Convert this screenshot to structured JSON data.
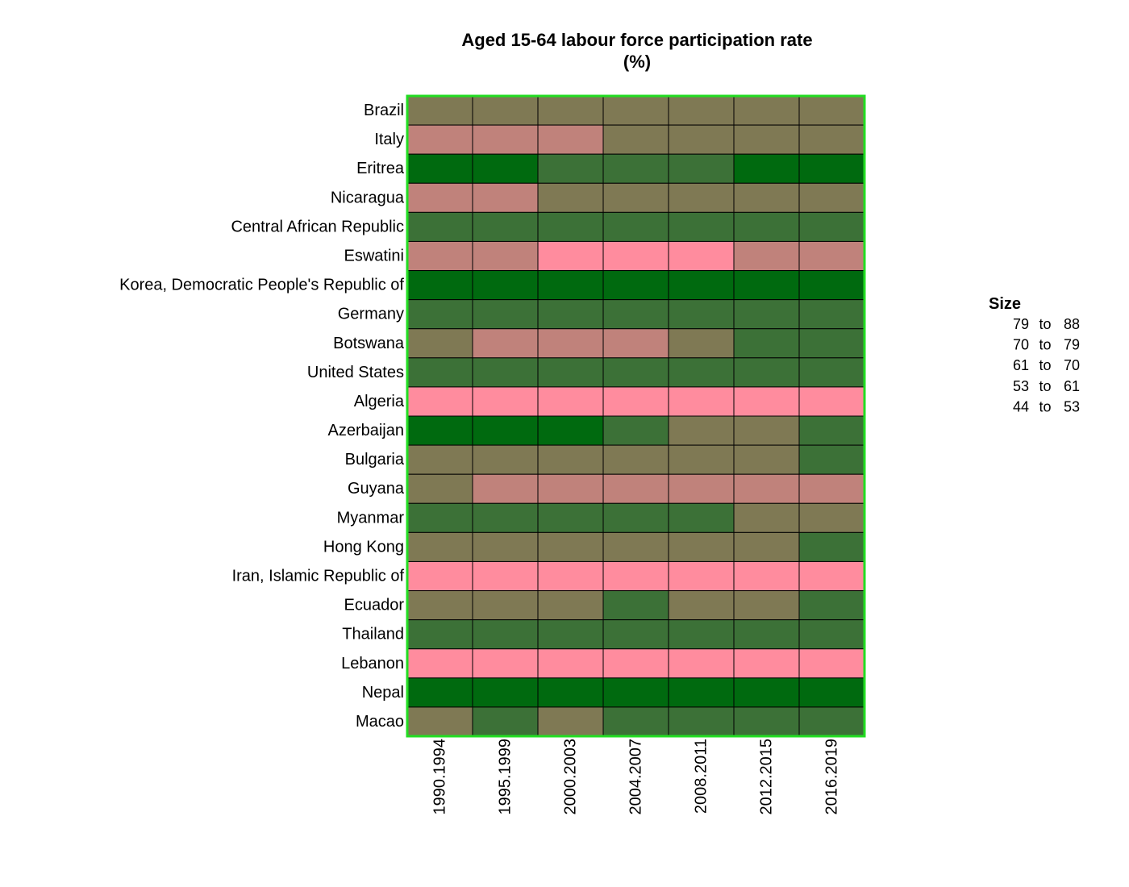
{
  "chart_data": {
    "type": "heatmap",
    "title": "Aged 15-64 labour force participation rate",
    "subtitle": "(%)",
    "columns": [
      "1990.1994",
      "1995.1999",
      "2000.2003",
      "2004.2007",
      "2008.2011",
      "2012.2015",
      "2016.2019"
    ],
    "rows": [
      "Brazil",
      "Italy",
      "Eritrea",
      "Nicaragua",
      "Central African Republic",
      "Eswatini",
      "Korea, Democratic People's Republic of",
      "Germany",
      "Botswana",
      "United States",
      "Algeria",
      "Azerbaijan",
      "Bulgaria",
      "Guyana",
      "Myanmar",
      "Hong Kong",
      "Iran, Islamic Republic of",
      "Ecuador",
      "Thailand",
      "Lebanon",
      "Nepal",
      "Macao"
    ],
    "bin_index": [
      [
        2,
        2,
        2,
        2,
        2,
        2,
        2
      ],
      [
        3,
        3,
        3,
        2,
        2,
        2,
        2
      ],
      [
        0,
        0,
        1,
        1,
        1,
        0,
        0
      ],
      [
        3,
        3,
        2,
        2,
        2,
        2,
        2
      ],
      [
        1,
        1,
        1,
        1,
        1,
        1,
        1
      ],
      [
        3,
        3,
        4,
        4,
        4,
        3,
        3
      ],
      [
        0,
        0,
        0,
        0,
        0,
        0,
        0
      ],
      [
        1,
        1,
        1,
        1,
        1,
        1,
        1
      ],
      [
        2,
        3,
        3,
        3,
        2,
        1,
        1
      ],
      [
        1,
        1,
        1,
        1,
        1,
        1,
        1
      ],
      [
        4,
        4,
        4,
        4,
        4,
        4,
        4
      ],
      [
        0,
        0,
        0,
        1,
        2,
        2,
        1
      ],
      [
        2,
        2,
        2,
        2,
        2,
        2,
        1
      ],
      [
        2,
        3,
        3,
        3,
        3,
        3,
        3
      ],
      [
        1,
        1,
        1,
        1,
        1,
        2,
        2
      ],
      [
        2,
        2,
        2,
        2,
        2,
        2,
        1
      ],
      [
        4,
        4,
        4,
        4,
        4,
        4,
        4
      ],
      [
        2,
        2,
        2,
        1,
        2,
        2,
        1
      ],
      [
        1,
        1,
        1,
        1,
        1,
        1,
        1
      ],
      [
        4,
        4,
        4,
        4,
        4,
        4,
        4
      ],
      [
        0,
        0,
        0,
        0,
        0,
        0,
        0
      ],
      [
        2,
        1,
        2,
        1,
        1,
        1,
        1
      ]
    ],
    "legend": {
      "title": "Size",
      "placement": "right",
      "bins": [
        {
          "from": "79",
          "word": "to",
          "to": "88",
          "color": "#006A0F"
        },
        {
          "from": "70",
          "word": "to",
          "to": "79",
          "color": "#3C7137"
        },
        {
          "from": "61",
          "word": "to",
          "to": "70",
          "color": "#7F7954"
        },
        {
          "from": "53",
          "word": "to",
          "to": "61",
          "color": "#C0827B"
        },
        {
          "from": "44",
          "word": "to",
          "to": "53",
          "color": "#FF8C9E"
        }
      ]
    },
    "frame_color": "#22DD22",
    "cell_border_color": "#000000"
  }
}
